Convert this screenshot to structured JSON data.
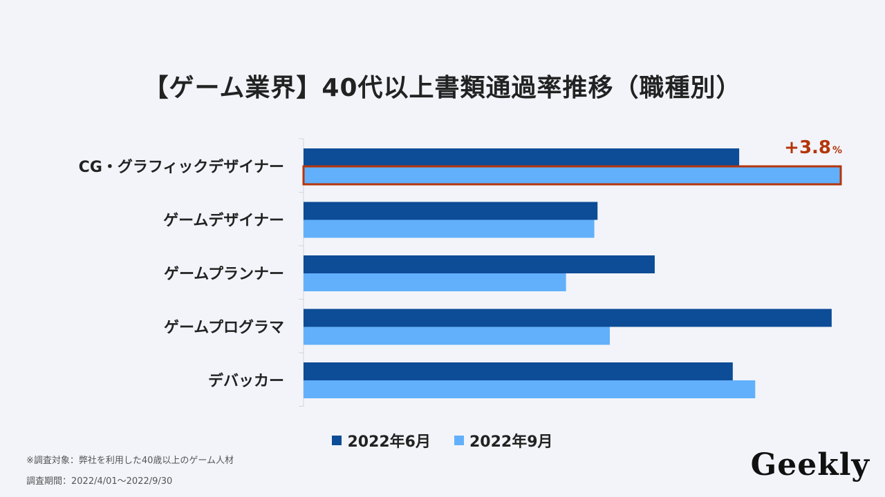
{
  "title": "【ゲーム業界】40代以上書類通過率推移（職種別）",
  "chart_data": {
    "type": "bar",
    "orientation": "horizontal",
    "categories": [
      "CG・グラフィックデザイナー",
      "ゲームデザイナー",
      "ゲームプランナー",
      "ゲームプログラマ",
      "デバッカー"
    ],
    "series": [
      {
        "name": "2022年6月",
        "color": "#0d4c96",
        "values": [
          81.5,
          55,
          65.7,
          98.8,
          80.3
        ]
      },
      {
        "name": "2022年9月",
        "color": "#62b0fb",
        "values": [
          100.5,
          54.4,
          49.1,
          57.3,
          84.5
        ]
      }
    ],
    "xlim": [
      0,
      100.5
    ],
    "axis_labels_shown": false,
    "grid": false,
    "legend_position": "bottom",
    "annotation": {
      "text": "+3.8",
      "unit": "%",
      "color": "#b5350b",
      "category": "CG・グラフィックデザイナー",
      "series": "2022年9月"
    }
  },
  "notes": [
    "※調査対象：弊社を利用した40歳以上のゲーム人材",
    "調査期間：2022/4/01〜2022/9/30"
  ],
  "logo": "Geekly"
}
